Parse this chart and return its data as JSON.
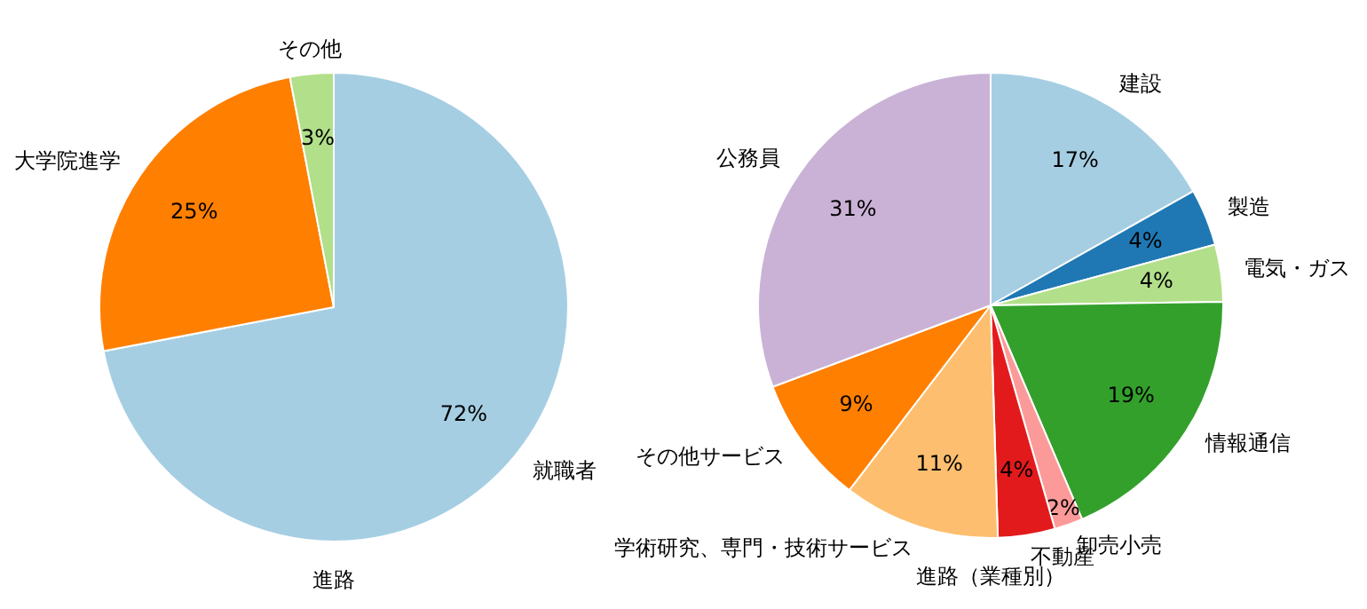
{
  "chart_data": [
    {
      "type": "pie",
      "xlabel": "進路",
      "categories": [
        "就職者",
        "大学院進学",
        "その他"
      ],
      "values": [
        72,
        25,
        3
      ],
      "value_labels": [
        "72%",
        "25%",
        "3%"
      ],
      "colors": [
        "#a6cee3",
        "#ff7f00",
        "#b2df8a"
      ]
    },
    {
      "type": "pie",
      "xlabel": "進路（業種別）",
      "categories": [
        "建設",
        "製造",
        "電気・ガス",
        "情報通信",
        "卸売小売",
        "不動産",
        "学術研究、専門・技術サービス",
        "その他サービス",
        "公務員"
      ],
      "values": [
        17,
        4,
        4,
        19,
        2,
        4,
        11,
        9,
        31
      ],
      "value_labels": [
        "17%",
        "4%",
        "4%",
        "19%",
        "2%",
        "4%",
        "11%",
        "9%",
        "31%"
      ],
      "colors": [
        "#a6cee3",
        "#1f78b4",
        "#b2df8a",
        "#33a02c",
        "#fb9a99",
        "#e31a1c",
        "#fdbf6f",
        "#ff7f00",
        "#cab2d6"
      ]
    }
  ]
}
